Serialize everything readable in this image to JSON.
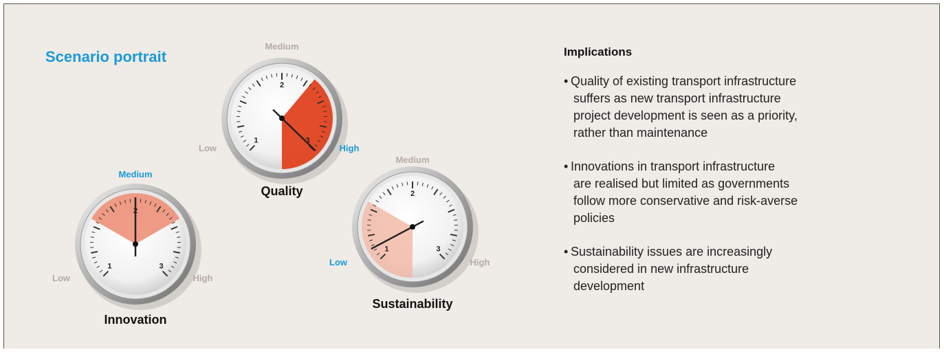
{
  "title": "Scenario portrait",
  "gauges": [
    {
      "name": "Quality",
      "dial": [
        "1",
        "2",
        "3"
      ],
      "levels": [
        {
          "text": "Low",
          "color": "#b5aca4"
        },
        {
          "text": "Medium",
          "color": "#b5aca4"
        },
        {
          "text": "High",
          "color": "#1a9ad6"
        }
      ]
    },
    {
      "name": "Innovation",
      "dial": [
        "1",
        "2",
        "3"
      ],
      "levels": [
        {
          "text": "Low",
          "color": "#b5aca4"
        },
        {
          "text": "Medium",
          "color": "#1a9ad6"
        },
        {
          "text": "High",
          "color": "#b5aca4"
        }
      ]
    },
    {
      "name": "Sustainability",
      "dial": [
        "1",
        "2",
        "3"
      ],
      "levels": [
        {
          "text": "Low",
          "color": "#1a9ad6"
        },
        {
          "text": "Medium",
          "color": "#b5aca4"
        },
        {
          "text": "High",
          "color": "#b5aca4"
        }
      ]
    }
  ],
  "implications": {
    "heading": "Implications",
    "bullets": [
      [
        "Quality of existing transport infrastructure",
        "suffers as new transport infrastructure",
        "project development is seen as a priority,",
        "rather than maintenance"
      ],
      [
        "Innovations in transport infrastructure",
        "are realised but limited as governments",
        "follow more conservative and risk-averse",
        "policies"
      ],
      [
        "Sustainability issues are increasingly",
        "considered in new infrastructure",
        "development"
      ]
    ]
  }
}
